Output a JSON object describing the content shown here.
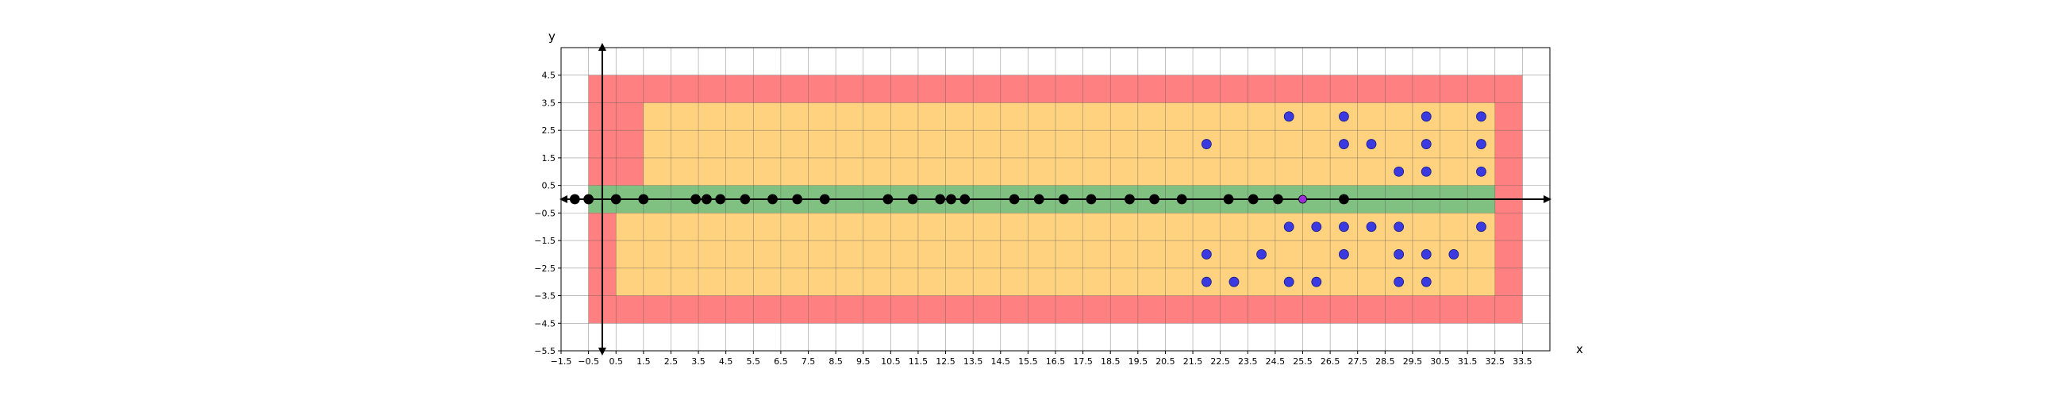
{
  "chart_data": {
    "type": "scatter",
    "title": "",
    "xlabel": "x",
    "ylabel": "y",
    "xlim": [
      -1.5,
      34.5
    ],
    "ylim": [
      -5.5,
      5.5
    ],
    "grid": true,
    "x_ticks": [
      "−1.5",
      "−0.5",
      "0.5",
      "1.5",
      "2.5",
      "3.5",
      "4.5",
      "5.5",
      "6.5",
      "7.5",
      "8.5",
      "9.5",
      "10.5",
      "11.5",
      "12.5",
      "13.5",
      "14.5",
      "15.5",
      "16.5",
      "17.5",
      "18.5",
      "19.5",
      "20.5",
      "21.5",
      "22.5",
      "23.5",
      "24.5",
      "25.5",
      "26.5",
      "27.5",
      "28.5",
      "29.5",
      "30.5",
      "31.5",
      "32.5",
      "33.5"
    ],
    "y_ticks": [
      "−5.5",
      "−4.5",
      "−3.5",
      "−2.5",
      "−1.5",
      "−0.5",
      "0.5",
      "1.5",
      "2.5",
      "3.5",
      "4.5"
    ],
    "x_tick_values": [
      -1.5,
      -0.5,
      0.5,
      1.5,
      2.5,
      3.5,
      4.5,
      5.5,
      6.5,
      7.5,
      8.5,
      9.5,
      10.5,
      11.5,
      12.5,
      13.5,
      14.5,
      15.5,
      16.5,
      17.5,
      18.5,
      19.5,
      20.5,
      21.5,
      22.5,
      23.5,
      24.5,
      25.5,
      26.5,
      27.5,
      28.5,
      29.5,
      30.5,
      31.5,
      32.5,
      33.5
    ],
    "y_tick_values": [
      -5.5,
      -4.5,
      -3.5,
      -2.5,
      -1.5,
      -0.5,
      0.5,
      1.5,
      2.5,
      3.5,
      4.5
    ],
    "regions": [
      {
        "name": "red-zone",
        "color": "#ff8080",
        "x": [
          -0.5,
          33.5
        ],
        "y": [
          -4.5,
          4.5
        ]
      },
      {
        "name": "orange-zone-upper",
        "color": "#ffd280",
        "x": [
          1.5,
          32.5
        ],
        "y": [
          0.5,
          3.5
        ]
      },
      {
        "name": "orange-zone-lower",
        "color": "#ffd280",
        "x": [
          0.5,
          32.5
        ],
        "y": [
          -3.5,
          -0.5
        ]
      },
      {
        "name": "green-band",
        "color": "#80c080",
        "x": [
          -0.5,
          32.5
        ],
        "y": [
          -0.5,
          0.5
        ]
      }
    ],
    "series": [
      {
        "color": "#000000",
        "points": [
          [
            -1,
            0
          ],
          [
            -0.5,
            0
          ],
          [
            0.5,
            0
          ],
          [
            1.5,
            0
          ],
          [
            3.4,
            0
          ],
          [
            3.8,
            0
          ],
          [
            4.3,
            0
          ],
          [
            5.2,
            0
          ],
          [
            6.2,
            0
          ],
          [
            7.1,
            0
          ],
          [
            8.1,
            0
          ],
          [
            10.4,
            0
          ],
          [
            11.3,
            0
          ],
          [
            12.3,
            0
          ],
          [
            12.7,
            0
          ],
          [
            13.2,
            0
          ],
          [
            15,
            0
          ],
          [
            15.9,
            0
          ],
          [
            16.8,
            0
          ],
          [
            17.8,
            0
          ],
          [
            19.2,
            0
          ],
          [
            20.1,
            0
          ],
          [
            21.1,
            0
          ],
          [
            22.8,
            0
          ],
          [
            23.7,
            0
          ],
          [
            24.6,
            0
          ],
          [
            27,
            0
          ]
        ]
      },
      {
        "color": "#3a3ae0",
        "points": [
          [
            22,
            2
          ],
          [
            25,
            3
          ],
          [
            27,
            3
          ],
          [
            27,
            2
          ],
          [
            28,
            2
          ],
          [
            30,
            3
          ],
          [
            30,
            2
          ],
          [
            29,
            1
          ],
          [
            30,
            1
          ],
          [
            32,
            3
          ],
          [
            32,
            2
          ],
          [
            32,
            1
          ],
          [
            25,
            -1
          ],
          [
            26,
            -1
          ],
          [
            27,
            -1
          ],
          [
            28,
            -1
          ],
          [
            29,
            -1
          ],
          [
            32,
            -1
          ],
          [
            22,
            -2
          ],
          [
            24,
            -2
          ],
          [
            27,
            -2
          ],
          [
            29,
            -2
          ],
          [
            30,
            -2
          ],
          [
            31,
            -2
          ],
          [
            22,
            -3
          ],
          [
            23,
            -3
          ],
          [
            25,
            -3
          ],
          [
            26,
            -3
          ],
          [
            29,
            -3
          ],
          [
            30,
            -3
          ]
        ]
      },
      {
        "color": "#9b30d9",
        "points": [
          [
            25.5,
            0
          ]
        ]
      }
    ]
  }
}
